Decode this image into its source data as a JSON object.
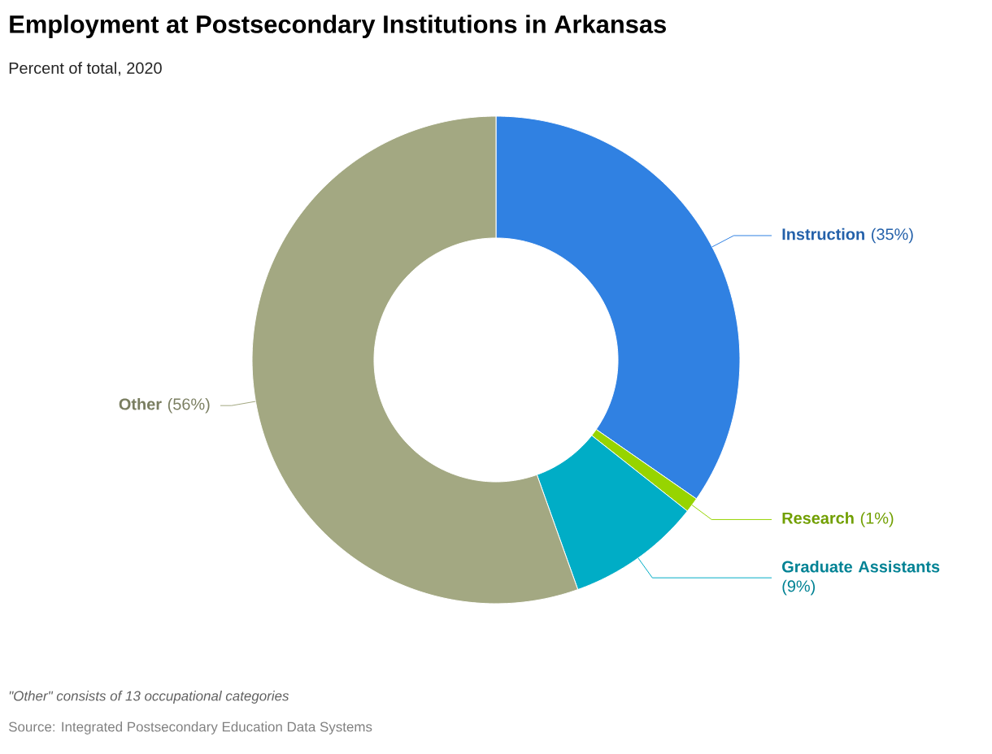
{
  "chart_data": {
    "type": "donut",
    "title": "Employment at Postsecondary Institutions in Arkansas",
    "subtitle": "Percent of total, 2020",
    "categories": [
      "Instruction",
      "Research",
      "Graduate Assistants",
      "Other"
    ],
    "values": [
      35,
      1,
      9,
      56
    ],
    "colors": [
      "#3081e2",
      "#97d400",
      "#00adc6",
      "#a3a882"
    ],
    "value_labels": [
      "(35%)",
      "(1%)",
      "(9%)",
      "(56%)"
    ],
    "annotations": [
      "\"Other\" consists of 13 occupational categories",
      "Source: Integrated Postsecondary Education Data Systems"
    ]
  }
}
